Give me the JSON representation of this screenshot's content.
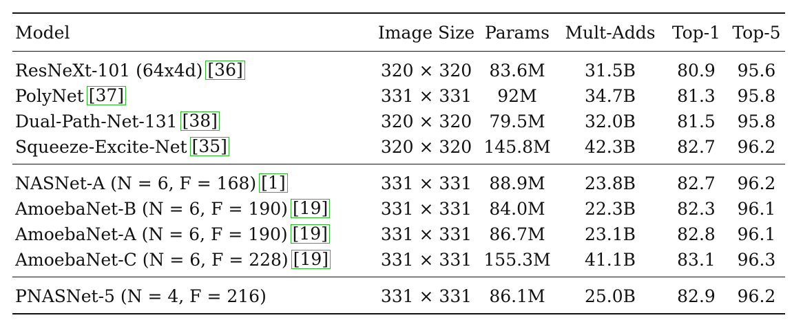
{
  "table": {
    "headers": [
      "Model",
      "Image Size",
      "Params",
      "Mult-Adds",
      "Top-1",
      "Top-5"
    ],
    "groups": [
      [
        {
          "model": "ResNeXt-101 (64x4d)",
          "cite": "36",
          "size": "320 × 320",
          "params": "83.6M",
          "madds": "31.5B",
          "top1": "80.9",
          "top5": "95.6"
        },
        {
          "model": "PolyNet",
          "cite": "37",
          "size": "331 × 331",
          "params": "92M",
          "madds": "34.7B",
          "top1": "81.3",
          "top5": "95.8"
        },
        {
          "model": "Dual-Path-Net-131",
          "cite": "38",
          "size": "320 × 320",
          "params": "79.5M",
          "madds": "32.0B",
          "top1": "81.5",
          "top5": "95.8"
        },
        {
          "model": "Squeeze-Excite-Net",
          "cite": "35",
          "size": "320 × 320",
          "params": "145.8M",
          "madds": "42.3B",
          "top1": "82.7",
          "top5": "96.2"
        }
      ],
      [
        {
          "model": "NASNet-A (N = 6, F = 168)",
          "cite": "1",
          "size": "331 × 331",
          "params": "88.9M",
          "madds": "23.8B",
          "top1": "82.7",
          "top5": "96.2"
        },
        {
          "model": "AmoebaNet-B (N = 6, F = 190)",
          "cite": "19",
          "size": "331 × 331",
          "params": "84.0M",
          "madds": "22.3B",
          "top1": "82.3",
          "top5": "96.1"
        },
        {
          "model": "AmoebaNet-A (N = 6, F = 190)",
          "cite": "19",
          "size": "331 × 331",
          "params": "86.7M",
          "madds": "23.1B",
          "top1": "82.8",
          "top5": "96.1"
        },
        {
          "model": "AmoebaNet-C (N = 6, F = 228)",
          "cite": "19",
          "size": "331 × 331",
          "params": "155.3M",
          "madds": "41.1B",
          "top1": "83.1",
          "top5": "96.3"
        }
      ],
      [
        {
          "model": "PNASNet-5 (N = 4, F = 216)",
          "cite": "",
          "size": "331 × 331",
          "params": "86.1M",
          "madds": "25.0B",
          "top1": "82.9",
          "top5": "96.2"
        }
      ]
    ],
    "cite_border_color": "#22bb22"
  }
}
